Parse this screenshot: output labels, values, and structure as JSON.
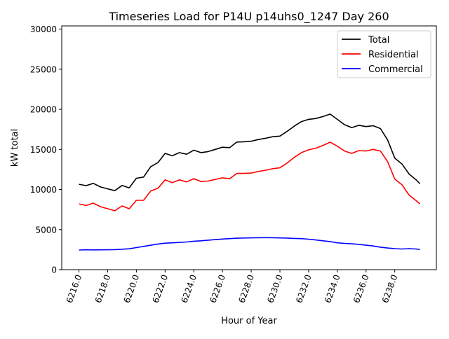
{
  "chart_data": {
    "type": "line",
    "title": "Timeseries Load for P14U p14uhs0_1247  Day 260",
    "xlabel": "Hour of Year",
    "ylabel": "kW total",
    "xlim": [
      6214.8,
      6240.9
    ],
    "ylim": [
      0,
      30400
    ],
    "xticks": [
      6216,
      6218,
      6220,
      6222,
      6224,
      6226,
      6228,
      6230,
      6232,
      6234,
      6236,
      6238
    ],
    "xtick_labels": [
      "6216.0",
      "6218.0",
      "6220.0",
      "6222.0",
      "6224.0",
      "6226.0",
      "6228.0",
      "6230.0",
      "6232.0",
      "6234.0",
      "6236.0",
      "6238.0"
    ],
    "yticks": [
      0,
      5000,
      10000,
      15000,
      20000,
      25000,
      30000
    ],
    "ytick_labels": [
      "0",
      "5000",
      "10000",
      "15000",
      "20000",
      "25000",
      "30000"
    ],
    "grid": false,
    "legend_placement": "top-right",
    "x": [
      6216,
      6216.5,
      6217,
      6217.5,
      6218,
      6218.5,
      6219,
      6219.5,
      6220,
      6220.5,
      6221,
      6221.5,
      6222,
      6222.5,
      6223,
      6223.5,
      6224,
      6224.5,
      6225,
      6225.5,
      6226,
      6226.5,
      6227,
      6227.5,
      6228,
      6228.5,
      6229,
      6229.5,
      6230,
      6230.5,
      6231,
      6231.5,
      6232,
      6232.5,
      6233,
      6233.5,
      6234,
      6234.5,
      6235,
      6235.5,
      6236,
      6236.5,
      6237,
      6237.5,
      6238,
      6238.5,
      6239,
      6239.5,
      6239.75
    ],
    "series": [
      {
        "name": "Total",
        "color": "#000000",
        "values": [
          10650,
          10480,
          10760,
          10320,
          10080,
          9850,
          10500,
          10200,
          11400,
          11550,
          12850,
          13350,
          14500,
          14200,
          14600,
          14400,
          14900,
          14600,
          14730,
          15000,
          15270,
          15220,
          15920,
          15950,
          16020,
          16230,
          16390,
          16580,
          16660,
          17240,
          17900,
          18470,
          18750,
          18850,
          19100,
          19400,
          18750,
          18080,
          17720,
          18000,
          17850,
          17950,
          17600,
          16200,
          13920,
          13180,
          11920,
          11180,
          10720
        ]
      },
      {
        "name": "Residential",
        "color": "#ff0000",
        "values": [
          8200,
          8000,
          8300,
          7850,
          7600,
          7350,
          7950,
          7600,
          8650,
          8650,
          9800,
          10150,
          11200,
          10850,
          11200,
          10950,
          11350,
          11000,
          11050,
          11250,
          11450,
          11350,
          12000,
          12000,
          12050,
          12250,
          12400,
          12600,
          12700,
          13300,
          14000,
          14600,
          14950,
          15150,
          15500,
          15900,
          15400,
          14800,
          14500,
          14850,
          14800,
          15000,
          14800,
          13500,
          11300,
          10600,
          9300,
          8600,
          8200
        ]
      },
      {
        "name": "Commercial",
        "color": "#0000ff",
        "values": [
          2450,
          2480,
          2460,
          2470,
          2480,
          2500,
          2550,
          2600,
          2750,
          2900,
          3050,
          3200,
          3300,
          3350,
          3400,
          3450,
          3550,
          3600,
          3680,
          3750,
          3820,
          3870,
          3920,
          3950,
          3970,
          3980,
          3990,
          3980,
          3960,
          3940,
          3900,
          3870,
          3800,
          3700,
          3600,
          3500,
          3350,
          3280,
          3220,
          3150,
          3050,
          2950,
          2800,
          2700,
          2620,
          2580,
          2620,
          2580,
          2520
        ]
      }
    ]
  }
}
